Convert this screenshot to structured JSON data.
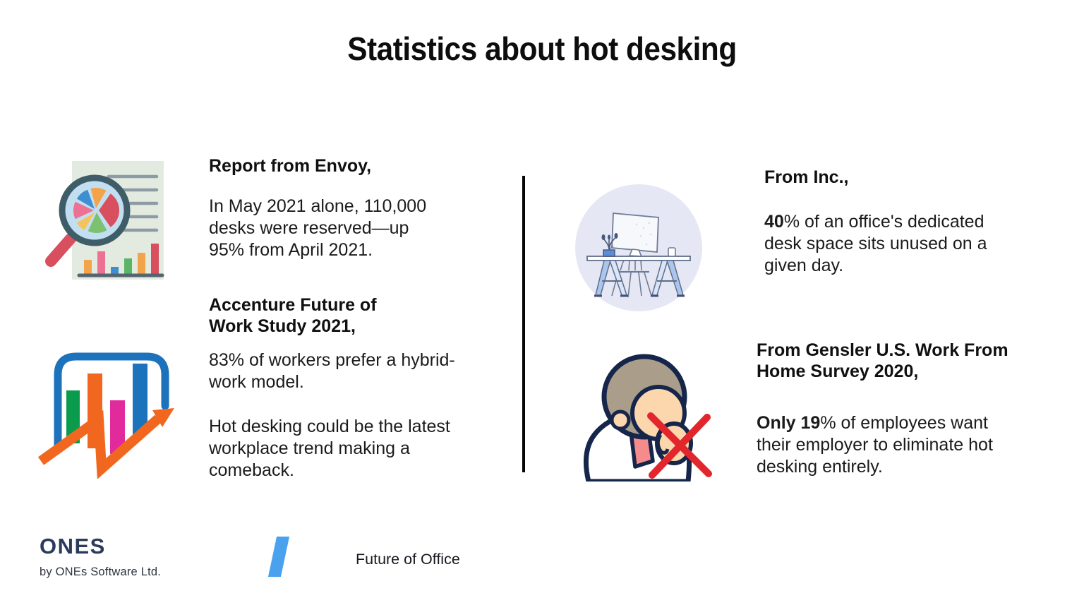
{
  "title": "Statistics about hot desking",
  "stats": {
    "envoy": {
      "heading": "Report from Envoy,",
      "body": "In May 2021 alone, 110,000\ndesks were reserved—up\n95% from April 2021."
    },
    "accenture": {
      "heading": "Accenture Future of\nWork Study 2021,",
      "body": "83% of workers prefer a hybrid-\nwork model.",
      "body2": "Hot desking could be the latest\nworkplace trend making a\ncomeback."
    },
    "inc": {
      "heading": "From Inc.,",
      "body_segments": [
        {
          "text": "40",
          "bold": true
        },
        {
          "text": "% of an office's dedicated\ndesk space sits unused on a\ngiven day.",
          "bold": false
        }
      ]
    },
    "gensler": {
      "heading": "From Gensler U.S. Work From\nHome Survey 2020,",
      "body_segments": [
        {
          "text": "Only 19",
          "bold": true
        },
        {
          "text": "% of employees want\ntheir employer to eliminate hot\ndesking entirely.",
          "bold": false
        }
      ]
    }
  },
  "footer": {
    "logo_text": "ONES",
    "logo_byline": "by ONEs Software Ltd.",
    "brand_label": "Future of Office"
  },
  "icons": {
    "report_analysis": "report-analysis-icon",
    "growth_chart": "growth-chart-icon",
    "desk_illustration": "desk-illustration-icon",
    "person_rejecting": "person-rejecting-icon",
    "brand_slash": "brand-slash-icon"
  },
  "colors": {
    "accent_blue": "#1d72bc",
    "accent_orange": "#f2671f",
    "accent_magenta": "#e12a9b",
    "accent_green": "#0b9b4d",
    "cross_red": "#e2262c",
    "brand_slash_blue": "#4aa2ef",
    "logo_navy": "#2b3b5c",
    "circle_lavender": "#e6e7f5",
    "divider_black": "#050505",
    "text_dark": "#1b1b1b"
  }
}
